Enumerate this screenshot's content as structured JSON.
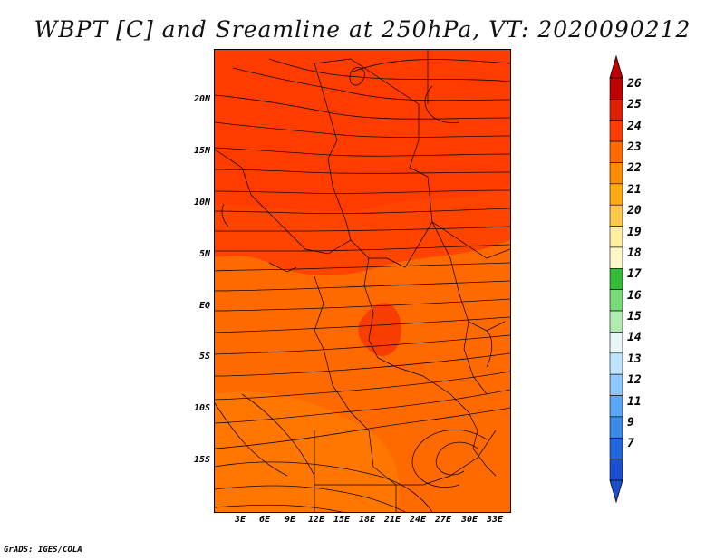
{
  "title": "WBPT [C] and Sreamline at 250hPa, VT: 2020090212",
  "map": {
    "lat_labels": [
      "20N",
      "15N",
      "10N",
      "5N",
      "EQ",
      "5S",
      "10S",
      "15S"
    ],
    "lon_labels": [
      "3E",
      "6E",
      "9E",
      "12E",
      "15E",
      "18E",
      "21E",
      "24E",
      "27E",
      "30E",
      "33E"
    ],
    "colors": {
      "warm": "#ff6a00",
      "hot": "#ff3c00",
      "hotter": "#f53200",
      "base": "#ff7a00"
    }
  },
  "colorbar": {
    "labels": [
      "26",
      "25",
      "24",
      "23",
      "22",
      "21",
      "20",
      "19",
      "18",
      "17",
      "16",
      "15",
      "14",
      "13",
      "12",
      "11",
      "9",
      "7"
    ],
    "colors": [
      "#c00000",
      "#e01e00",
      "#ff3c00",
      "#ff6a00",
      "#ff8c00",
      "#ffaa10",
      "#ffc84a",
      "#fff0a0",
      "#fff7c8",
      "#33bb33",
      "#77d977",
      "#b0ecb0",
      "#e6f7f7",
      "#bfe4ff",
      "#8cc8ff",
      "#5aa8f5",
      "#3a8ae8",
      "#2266dd",
      "#1a4fd0"
    ]
  },
  "footer": "GrADS: IGES/COLA"
}
